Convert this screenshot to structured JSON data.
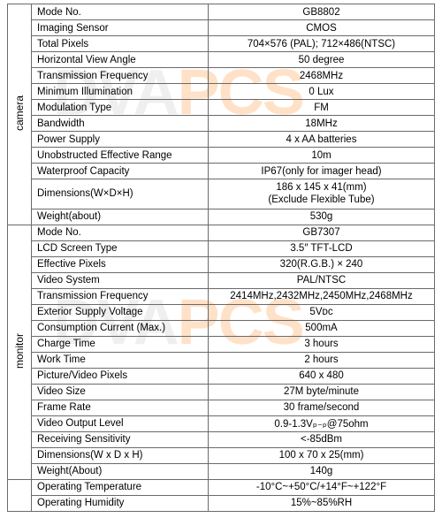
{
  "watermark_gray": "DVA",
  "watermark_orange": "PCS",
  "sections": {
    "camera": "camera",
    "monitor": "monitor"
  },
  "camera": {
    "mode_no_l": "Mode No.",
    "mode_no_v": "GB8802",
    "sensor_l": "Imaging Sensor",
    "sensor_v": "CMOS",
    "total_pixels_l": "Total Pixels",
    "total_pixels_v": "704×576 (PAL);  712×486(NTSC)",
    "hva_l": "Horizontal View Angle",
    "hva_v": "50 degree",
    "tx_l": "Transmission Frequency",
    "tx_v": "2468MHz",
    "min_ill_l": "Minimum Illumination",
    "min_ill_v": "0 Lux",
    "mod_l": "Modulation Type",
    "mod_v": "FM",
    "bw_l": "Bandwidth",
    "bw_v": "18MHz",
    "ps_l": "Power Supply",
    "ps_v": "4 x AA batteries",
    "range_l": "Unobstructed Effective Range",
    "range_v": "10m",
    "wp_l": "Waterproof Capacity",
    "wp_v": "IP67(only for imager head)",
    "dim_l": "Dimensions(W×D×H)",
    "dim_v": "186 x 145 x 41(mm)\n(Exclude Flexible Tube)",
    "wt_l": "Weight(about)",
    "wt_v": "530g"
  },
  "monitor": {
    "mode_no_l": "Mode No.",
    "mode_no_v": "GB7307",
    "lcd_l": "LCD Screen Type",
    "lcd_v": "3.5″ TFT-LCD",
    "eff_l": "Effective Pixels",
    "eff_v": "320(R.G.B.) × 240",
    "vs_l": "Video System",
    "vs_v": "PAL/NTSC",
    "tx_l": "Transmission Frequency",
    "tx_v": "2414MHz,2432MHz,2450MHz,2468MHz",
    "esv_l": "Exterior Supply Voltage",
    "esv_v": "5Vᴅᴄ",
    "cc_l": "Consumption Current (Max.)",
    "cc_v": "500mA",
    "ct_l": "Charge Time",
    "ct_v": "3 hours",
    "wt_l2": "Work Time",
    "wt_v2": "2 hours",
    "pvp_l": "Picture/Video Pixels",
    "pvp_v": "640 x 480",
    "vsize_l": "Video Size",
    "vsize_v": "27M byte/minute",
    "fr_l": "Frame Rate",
    "fr_v": "30 frame/second",
    "vol_l": "Video Output Level",
    "vol_v": "0.9-1.3Vₚ₋ₚ@75ohm",
    "rs_l": "Receiving Sensitivity",
    "rs_v": "<-85dBm",
    "dim_l": "Dimensions(W x D x H)",
    "dim_v": "100 x 70 x 25(mm)",
    "wt_l": "Weight(About)",
    "wt_v": "140g"
  },
  "env": {
    "ot_l": "Operating Temperature",
    "ot_v": "-10°C~+50°C/+14°F~+122°F",
    "oh_l": "Operating Humidity",
    "oh_v": "15%~85%RH"
  },
  "style": {
    "shade_color": "#cecece",
    "border_color": "#6a6a6a",
    "font_size": 11.5
  }
}
